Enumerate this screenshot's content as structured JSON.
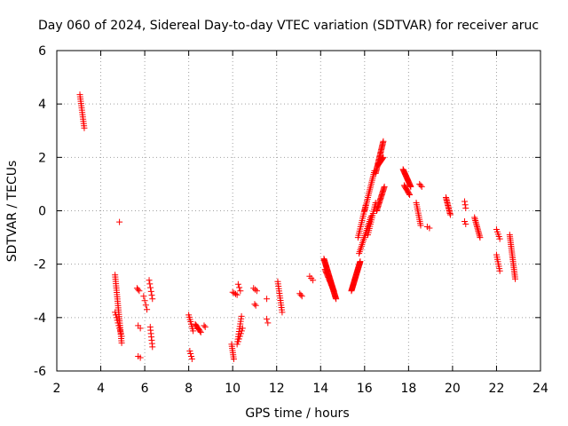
{
  "chart_data": {
    "type": "scatter",
    "title": "Day 060 of 2024, Sidereal Day-to-day VTEC variation (SDTVAR) for receiver aruc",
    "xlabel": "GPS time / hours",
    "ylabel": "SDTVAR / TECUs",
    "xlim": [
      2,
      24
    ],
    "ylim": [
      -6,
      6
    ],
    "xticks": [
      "2",
      "4",
      "6",
      "8",
      "10",
      "12",
      "14",
      "16",
      "18",
      "20",
      "22",
      "24"
    ],
    "yticks": [
      "-6",
      "-4",
      "-2",
      "0",
      "2",
      "4",
      "6"
    ],
    "grid": true,
    "marker": "+",
    "color": "#ff0000",
    "segments": [
      {
        "x0": 3.05,
        "x1": 3.25,
        "y0": 4.35,
        "y1": 3.1,
        "n": 16
      },
      {
        "x0": 4.85,
        "x1": 4.85,
        "y0": -0.42,
        "y1": -0.42,
        "n": 1
      },
      {
        "x0": 4.65,
        "x1": 4.95,
        "y0": -2.4,
        "y1": -4.95,
        "n": 32
      },
      {
        "x0": 4.65,
        "x1": 4.95,
        "y0": -3.8,
        "y1": -4.7,
        "n": 10
      },
      {
        "x0": 5.65,
        "x1": 5.75,
        "y0": -2.9,
        "y1": -3.0,
        "n": 3
      },
      {
        "x0": 5.7,
        "x1": 5.8,
        "y0": -4.3,
        "y1": -4.4,
        "n": 2
      },
      {
        "x0": 5.7,
        "x1": 5.8,
        "y0": -5.45,
        "y1": -5.5,
        "n": 2
      },
      {
        "x0": 5.95,
        "x1": 6.1,
        "y0": -3.2,
        "y1": -3.7,
        "n": 4
      },
      {
        "x0": 6.2,
        "x1": 6.35,
        "y0": -2.6,
        "y1": -3.3,
        "n": 6
      },
      {
        "x0": 6.25,
        "x1": 6.35,
        "y0": -4.35,
        "y1": -5.1,
        "n": 7
      },
      {
        "x0": 8.0,
        "x1": 8.2,
        "y0": -3.9,
        "y1": -4.5,
        "n": 8
      },
      {
        "x0": 8.05,
        "x1": 8.15,
        "y0": -5.25,
        "y1": -5.55,
        "n": 4
      },
      {
        "x0": 8.3,
        "x1": 8.55,
        "y0": -4.25,
        "y1": -4.55,
        "n": 8
      },
      {
        "x0": 8.7,
        "x1": 8.75,
        "y0": -4.3,
        "y1": -4.35,
        "n": 2
      },
      {
        "x0": 9.95,
        "x1": 10.05,
        "y0": -5.0,
        "y1": -5.55,
        "n": 8
      },
      {
        "x0": 10.0,
        "x1": 10.2,
        "y0": -3.05,
        "y1": -3.15,
        "n": 4
      },
      {
        "x0": 10.2,
        "x1": 10.4,
        "y0": -5.0,
        "y1": -3.95,
        "n": 12
      },
      {
        "x0": 10.25,
        "x1": 10.35,
        "y0": -2.75,
        "y1": -3.0,
        "n": 3
      },
      {
        "x0": 10.25,
        "x1": 10.45,
        "y0": -4.9,
        "y1": -4.4,
        "n": 6
      },
      {
        "x0": 10.95,
        "x1": 11.1,
        "y0": -2.9,
        "y1": -3.0,
        "n": 3
      },
      {
        "x0": 11.0,
        "x1": 11.05,
        "y0": -3.5,
        "y1": -3.55,
        "n": 2
      },
      {
        "x0": 11.55,
        "x1": 11.6,
        "y0": -3.3,
        "y1": -3.3,
        "n": 1
      },
      {
        "x0": 11.55,
        "x1": 11.6,
        "y0": -4.05,
        "y1": -4.2,
        "n": 2
      },
      {
        "x0": 12.05,
        "x1": 12.25,
        "y0": -2.65,
        "y1": -3.8,
        "n": 14
      },
      {
        "x0": 13.05,
        "x1": 13.15,
        "y0": -3.1,
        "y1": -3.2,
        "n": 3
      },
      {
        "x0": 13.5,
        "x1": 13.65,
        "y0": -2.45,
        "y1": -2.6,
        "n": 3
      },
      {
        "x0": 14.15,
        "x1": 14.7,
        "y0": -1.8,
        "y1": -3.3,
        "n": 50
      },
      {
        "x0": 14.2,
        "x1": 14.6,
        "y0": -2.2,
        "y1": -3.0,
        "n": 20
      },
      {
        "x0": 15.4,
        "x1": 15.8,
        "y0": -3.0,
        "y1": -1.9,
        "n": 40
      },
      {
        "x0": 15.7,
        "x1": 16.05,
        "y0": -1.0,
        "y1": 0.2,
        "n": 16
      },
      {
        "x0": 15.75,
        "x1": 16.3,
        "y0": -1.6,
        "y1": -0.2,
        "n": 22
      },
      {
        "x0": 16.0,
        "x1": 16.45,
        "y0": 0.0,
        "y1": 1.5,
        "n": 22
      },
      {
        "x0": 16.15,
        "x1": 16.5,
        "y0": -0.9,
        "y1": 0.3,
        "n": 16
      },
      {
        "x0": 16.5,
        "x1": 16.85,
        "y0": 1.4,
        "y1": 2.6,
        "n": 28
      },
      {
        "x0": 16.55,
        "x1": 16.9,
        "y0": 0.0,
        "y1": 0.9,
        "n": 22
      },
      {
        "x0": 16.6,
        "x1": 16.85,
        "y0": 1.7,
        "y1": 2.0,
        "n": 10
      },
      {
        "x0": 17.75,
        "x1": 18.1,
        "y0": 1.55,
        "y1": 0.9,
        "n": 22
      },
      {
        "x0": 17.8,
        "x1": 18.05,
        "y0": 0.95,
        "y1": 0.6,
        "n": 10
      },
      {
        "x0": 18.35,
        "x1": 18.55,
        "y0": 0.3,
        "y1": -0.55,
        "n": 12
      },
      {
        "x0": 18.5,
        "x1": 18.6,
        "y0": 1.0,
        "y1": 0.9,
        "n": 3
      },
      {
        "x0": 18.85,
        "x1": 18.95,
        "y0": -0.6,
        "y1": -0.65,
        "n": 2
      },
      {
        "x0": 19.7,
        "x1": 19.9,
        "y0": 0.5,
        "y1": -0.15,
        "n": 14
      },
      {
        "x0": 20.55,
        "x1": 20.6,
        "y0": 0.35,
        "y1": 0.1,
        "n": 3
      },
      {
        "x0": 20.55,
        "x1": 20.6,
        "y0": -0.4,
        "y1": -0.5,
        "n": 2
      },
      {
        "x0": 21.0,
        "x1": 21.25,
        "y0": -0.25,
        "y1": -1.0,
        "n": 14
      },
      {
        "x0": 22.0,
        "x1": 22.15,
        "y0": -0.7,
        "y1": -1.05,
        "n": 5
      },
      {
        "x0": 22.0,
        "x1": 22.15,
        "y0": -1.65,
        "y1": -2.25,
        "n": 8
      },
      {
        "x0": 22.6,
        "x1": 22.85,
        "y0": -0.9,
        "y1": -2.55,
        "n": 24
      }
    ]
  }
}
